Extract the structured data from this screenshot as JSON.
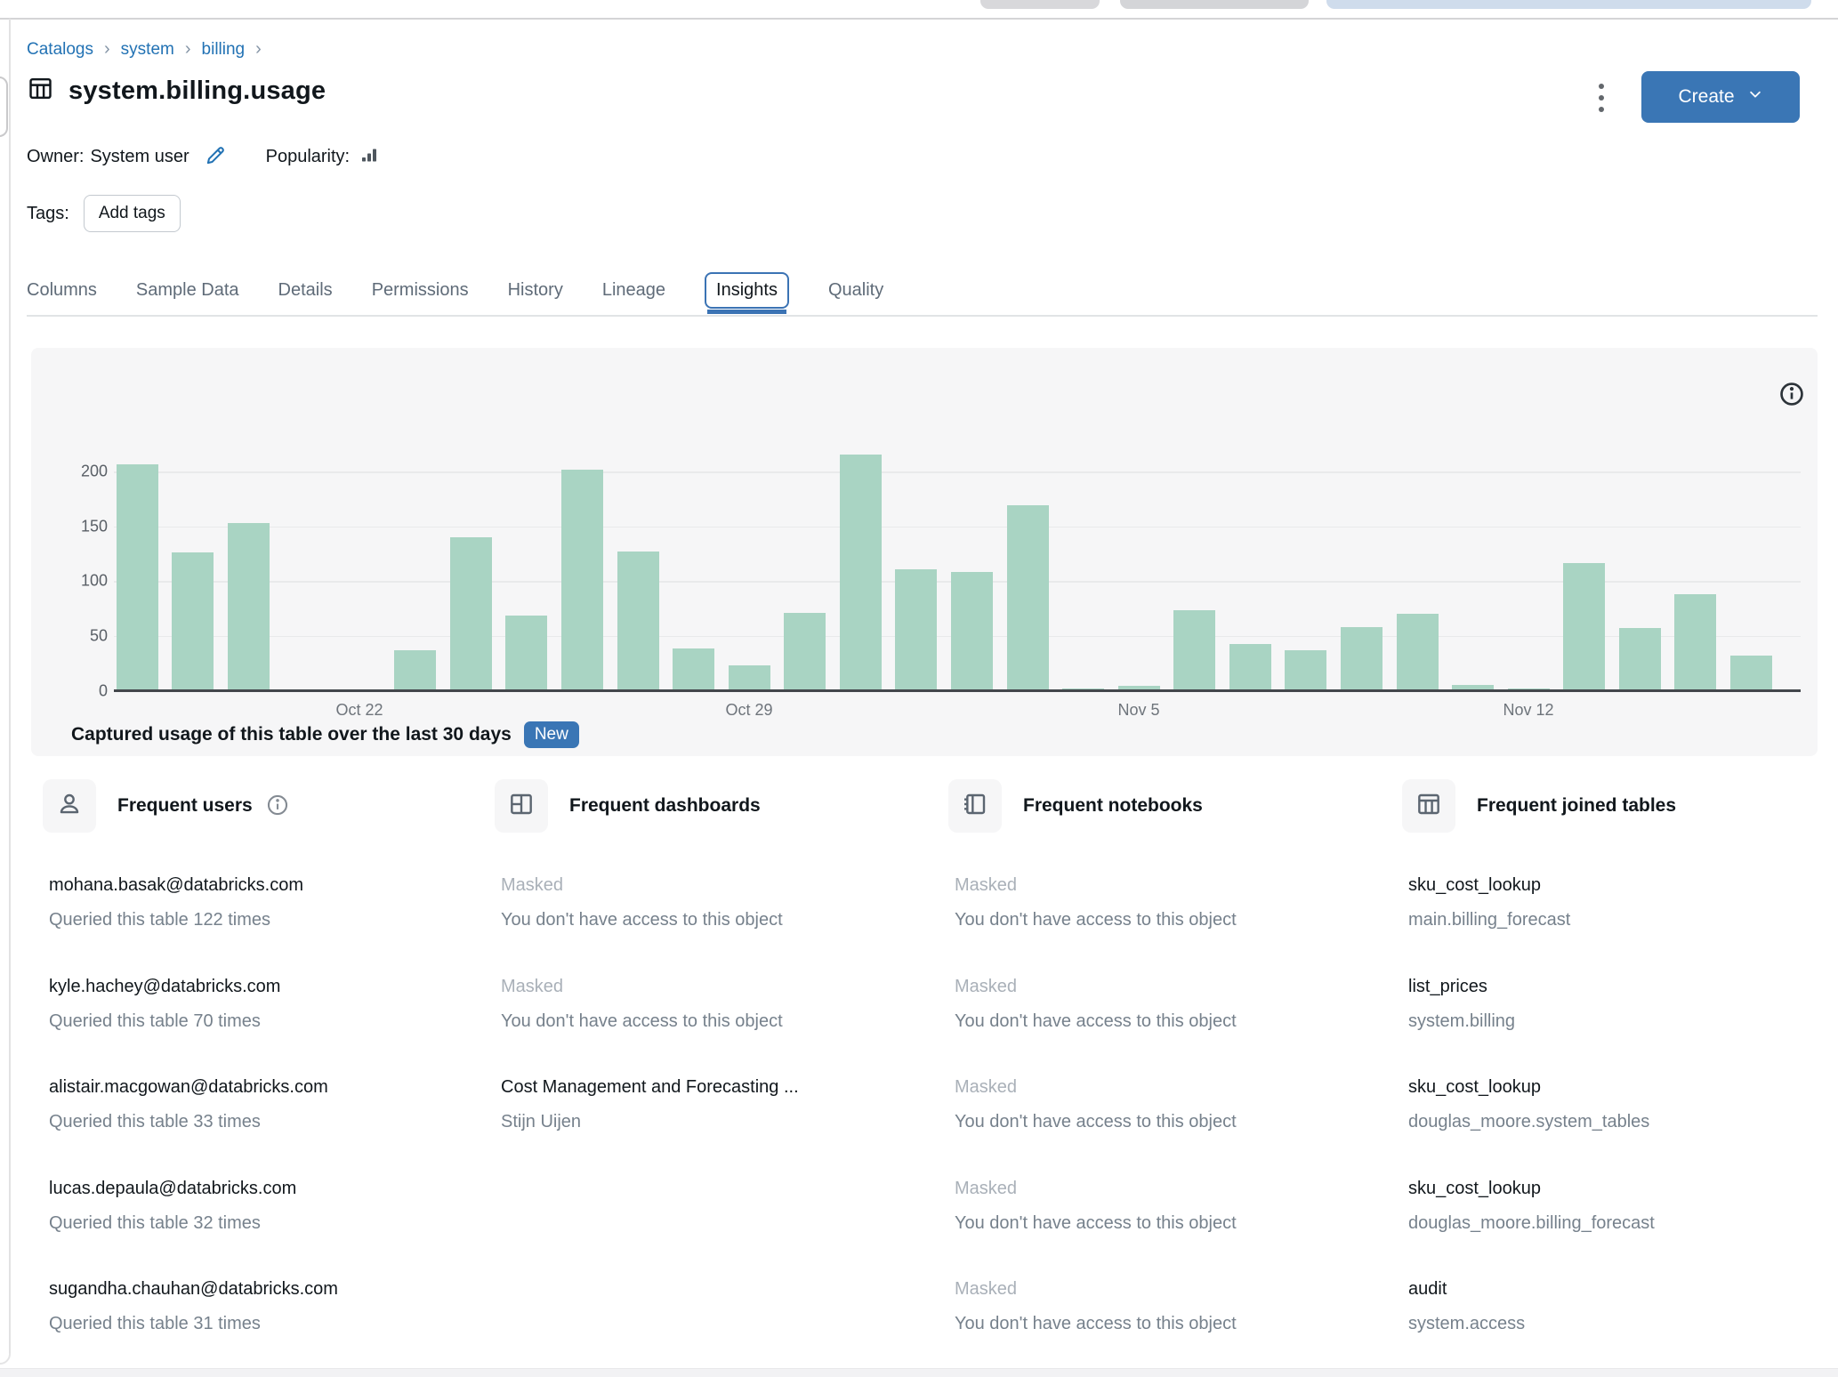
{
  "page": {
    "breadcrumb": {
      "items": [
        "Catalogs",
        "system",
        "billing"
      ],
      "separator": "›"
    },
    "title": "system.billing.usage",
    "title_icon": "table-icon",
    "owner_label": "Owner:",
    "owner_value": "System user",
    "owner_edit_icon": "pencil-icon",
    "popularity_label": "Popularity:",
    "popularity_icon": "signal-bars-icon",
    "tags_label": "Tags:",
    "add_tags_button": "Add tags",
    "more_icon": "kebab-icon",
    "create_button": "Create",
    "create_chevron_icon": "chevron-down-icon",
    "tabs": [
      {
        "label": "Columns",
        "active": false
      },
      {
        "label": "Sample Data",
        "active": false
      },
      {
        "label": "Details",
        "active": false
      },
      {
        "label": "Permissions",
        "active": false
      },
      {
        "label": "History",
        "active": false
      },
      {
        "label": "Lineage",
        "active": false
      },
      {
        "label": "Insights",
        "active": true
      },
      {
        "label": "Quality",
        "active": false
      }
    ],
    "colors": {
      "link_blue": "#2272b4",
      "button_blue": "#3a76b5",
      "tab_accent": "#3b73b4",
      "bar_green": "#a9d4c3"
    }
  },
  "insights_panel": {
    "title": "Captured usage of this table over the last 30 days",
    "badge": "New",
    "info_icon": "info-icon"
  },
  "chart_data": {
    "type": "bar",
    "title": "Captured usage of this table over the last 30 days",
    "x": [
      "Oct 18",
      "Oct 19",
      "Oct 20",
      "Oct 21",
      "Oct 22",
      "Oct 23",
      "Oct 24",
      "Oct 25",
      "Oct 26",
      "Oct 27",
      "Oct 28",
      "Oct 29",
      "Oct 30",
      "Oct 31",
      "Nov 1",
      "Nov 2",
      "Nov 3",
      "Nov 4",
      "Nov 5",
      "Nov 6",
      "Nov 7",
      "Nov 8",
      "Nov 9",
      "Nov 10",
      "Nov 11",
      "Nov 12",
      "Nov 13",
      "Nov 14",
      "Nov 15",
      "Nov 16"
    ],
    "values": [
      207,
      126,
      153,
      0,
      0,
      37,
      140,
      68,
      202,
      127,
      38,
      23,
      71,
      216,
      111,
      108,
      169,
      1,
      4,
      73,
      42,
      37,
      58,
      70,
      5,
      2,
      116,
      57,
      88,
      32
    ],
    "y_ticks": [
      0,
      50,
      100,
      150,
      200
    ],
    "x_tick_labels": [
      "Oct 22",
      "Oct 29",
      "Nov 5",
      "Nov 12"
    ],
    "ylim": [
      0,
      220
    ],
    "grid": true,
    "legend": "none",
    "bar_color": "#a9d4c3"
  },
  "sections": [
    {
      "id": "frequent-users",
      "title": "Frequent users",
      "icon": "user-icon",
      "has_info": true,
      "items": [
        {
          "primary": "mohana.basak@databricks.com",
          "secondary": "Queried this table 122 times",
          "masked": false,
          "link": false
        },
        {
          "primary": "kyle.hachey@databricks.com",
          "secondary": "Queried this table 70 times",
          "masked": false,
          "link": false
        },
        {
          "primary": "alistair.macgowan@databricks.com",
          "secondary": "Queried this table 33 times",
          "masked": false,
          "link": false
        },
        {
          "primary": "lucas.depaula@databricks.com",
          "secondary": "Queried this table 32 times",
          "masked": false,
          "link": false
        },
        {
          "primary": "sugandha.chauhan@databricks.com",
          "secondary": "Queried this table 31 times",
          "masked": false,
          "link": false
        }
      ]
    },
    {
      "id": "frequent-dashboards",
      "title": "Frequent dashboards",
      "icon": "dashboard-icon",
      "has_info": false,
      "items": [
        {
          "primary": "Masked",
          "secondary": "You don't have access to this object",
          "masked": true,
          "link": false
        },
        {
          "primary": "Masked",
          "secondary": "You don't have access to this object",
          "masked": true,
          "link": false
        },
        {
          "primary": "Cost Management and Forecasting ...",
          "secondary": "Stijn Uijen",
          "masked": false,
          "link": true
        }
      ]
    },
    {
      "id": "frequent-notebooks",
      "title": "Frequent notebooks",
      "icon": "notebook-icon",
      "has_info": false,
      "items": [
        {
          "primary": "Masked",
          "secondary": "You don't have access to this object",
          "masked": true,
          "link": false
        },
        {
          "primary": "Masked",
          "secondary": "You don't have access to this object",
          "masked": true,
          "link": false
        },
        {
          "primary": "Masked",
          "secondary": "You don't have access to this object",
          "masked": true,
          "link": false
        },
        {
          "primary": "Masked",
          "secondary": "You don't have access to this object",
          "masked": true,
          "link": false
        },
        {
          "primary": "Masked",
          "secondary": "You don't have access to this object",
          "masked": true,
          "link": false
        }
      ]
    },
    {
      "id": "frequent-joined-tables",
      "title": "Frequent joined tables",
      "icon": "table-icon",
      "has_info": false,
      "items": [
        {
          "primary": "sku_cost_lookup",
          "secondary": "main.billing_forecast",
          "masked": false,
          "link": true
        },
        {
          "primary": "list_prices",
          "secondary": "system.billing",
          "masked": false,
          "link": true
        },
        {
          "primary": "sku_cost_lookup",
          "secondary": "douglas_moore.system_tables",
          "masked": false,
          "link": true
        },
        {
          "primary": "sku_cost_lookup",
          "secondary": "douglas_moore.billing_forecast",
          "masked": false,
          "link": true
        },
        {
          "primary": "audit",
          "secondary": "system.access",
          "masked": false,
          "link": true
        }
      ]
    }
  ]
}
